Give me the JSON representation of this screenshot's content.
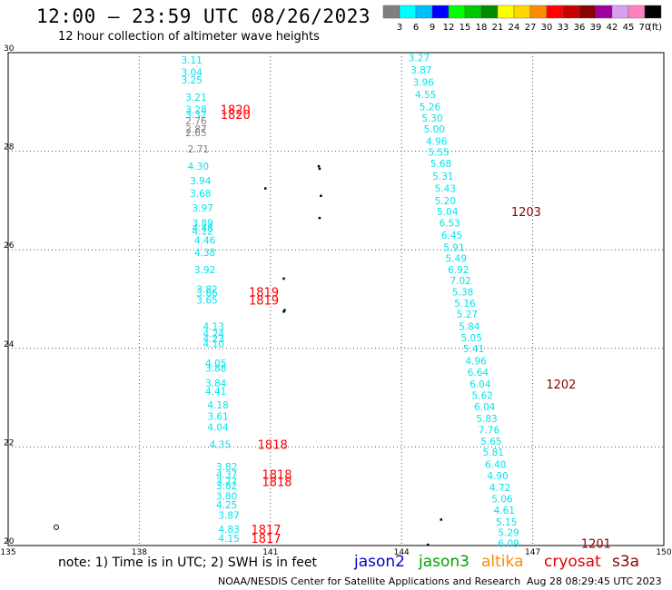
{
  "title": "12:00 – 23:59 UTC 08/26/2023",
  "subtitle": "12 hour collection of altimeter wave heights",
  "colorbar": {
    "unit": "(ft)",
    "bins": [
      {
        "label": "3",
        "color": "#7f7f7f"
      },
      {
        "label": "6",
        "color": "#00ffff"
      },
      {
        "label": "9",
        "color": "#00bfff"
      },
      {
        "label": "12",
        "color": "#0000ff"
      },
      {
        "label": "15",
        "color": "#00ff00"
      },
      {
        "label": "18",
        "color": "#00c800"
      },
      {
        "label": "21",
        "color": "#008c00"
      },
      {
        "label": "24",
        "color": "#ffff00"
      },
      {
        "label": "27",
        "color": "#ffd700"
      },
      {
        "label": "30",
        "color": "#ff8c00"
      },
      {
        "label": "33",
        "color": "#ff0000"
      },
      {
        "label": "36",
        "color": "#c80000"
      },
      {
        "label": "39",
        "color": "#8b0000"
      },
      {
        "label": "42",
        "color": "#a000a0"
      },
      {
        "label": "45",
        "color": "#d8a0f0"
      },
      {
        "label": "70",
        "color": "#ff80c0"
      },
      {
        "label": "",
        "color": "#000000"
      }
    ]
  },
  "map": {
    "lon_min": 135,
    "lon_max": 150,
    "lat_min": 20,
    "lat_max": 30,
    "lon_ticks": [
      "135",
      "138",
      "141",
      "144",
      "147",
      "150"
    ],
    "lat_ticks": [
      "30",
      "28",
      "26",
      "24",
      "22",
      "20"
    ]
  },
  "chart_data": {
    "type": "scatter",
    "tracks": [
      {
        "name": "track-west",
        "points": [
          {
            "lon": 139.2,
            "lat": 29.85,
            "v": "3.11",
            "c": "#00e5ee"
          },
          {
            "lon": 139.2,
            "lat": 29.6,
            "v": "3.04",
            "c": "#00e5ee"
          },
          {
            "lon": 139.2,
            "lat": 29.45,
            "v": "3.25",
            "c": "#00e5ee"
          },
          {
            "lon": 139.3,
            "lat": 29.1,
            "v": "3.21",
            "c": "#00e5ee"
          },
          {
            "lon": 139.3,
            "lat": 28.85,
            "v": "3.28",
            "c": "#00e5ee"
          },
          {
            "lon": 139.3,
            "lat": 28.75,
            "v": "3.32",
            "c": "#00e5ee"
          },
          {
            "lon": 139.3,
            "lat": 28.62,
            "v": "2.76",
            "c": "#7f7f7f"
          },
          {
            "lon": 139.3,
            "lat": 28.45,
            "v": "2.87",
            "c": "#7f7f7f"
          },
          {
            "lon": 139.3,
            "lat": 28.38,
            "v": "2.65",
            "c": "#7f7f7f"
          },
          {
            "lon": 139.35,
            "lat": 28.05,
            "v": "2.71",
            "c": "#7f7f7f"
          },
          {
            "lon": 139.35,
            "lat": 27.7,
            "v": "4.30",
            "c": "#00e5ee"
          },
          {
            "lon": 139.4,
            "lat": 27.4,
            "v": "3.94",
            "c": "#00e5ee"
          },
          {
            "lon": 139.4,
            "lat": 27.15,
            "v": "3.68",
            "c": "#00e5ee"
          },
          {
            "lon": 139.45,
            "lat": 26.85,
            "v": "3.97",
            "c": "#00e5ee"
          },
          {
            "lon": 139.45,
            "lat": 26.55,
            "v": "3.89",
            "c": "#00e5ee"
          },
          {
            "lon": 139.45,
            "lat": 26.45,
            "v": "4.48",
            "c": "#00e5ee"
          },
          {
            "lon": 139.45,
            "lat": 26.38,
            "v": "4.12",
            "c": "#00e5ee"
          },
          {
            "lon": 139.5,
            "lat": 26.2,
            "v": "4.46",
            "c": "#00e5ee"
          },
          {
            "lon": 139.5,
            "lat": 25.95,
            "v": "4.38",
            "c": "#00e5ee"
          },
          {
            "lon": 139.5,
            "lat": 25.6,
            "v": "3.92",
            "c": "#00e5ee"
          },
          {
            "lon": 139.55,
            "lat": 25.2,
            "v": "3.82",
            "c": "#00e5ee"
          },
          {
            "lon": 139.55,
            "lat": 25.13,
            "v": "3.66",
            "c": "#00e5ee"
          },
          {
            "lon": 139.55,
            "lat": 24.98,
            "v": "3.65",
            "c": "#00e5ee"
          },
          {
            "lon": 139.7,
            "lat": 24.45,
            "v": "4.13",
            "c": "#00e5ee"
          },
          {
            "lon": 139.7,
            "lat": 24.3,
            "v": "4.24",
            "c": "#00e5ee"
          },
          {
            "lon": 139.7,
            "lat": 24.2,
            "v": "4.23",
            "c": "#00e5ee"
          },
          {
            "lon": 139.7,
            "lat": 24.1,
            "v": "4.10",
            "c": "#00e5ee"
          },
          {
            "lon": 139.75,
            "lat": 23.7,
            "v": "4.05",
            "c": "#00e5ee"
          },
          {
            "lon": 139.75,
            "lat": 23.6,
            "v": "3.88",
            "c": "#00e5ee"
          },
          {
            "lon": 139.75,
            "lat": 23.3,
            "v": "3.84",
            "c": "#00e5ee"
          },
          {
            "lon": 139.75,
            "lat": 23.13,
            "v": "4.41",
            "c": "#00e5ee"
          },
          {
            "lon": 139.8,
            "lat": 22.85,
            "v": "4.18",
            "c": "#00e5ee"
          },
          {
            "lon": 139.8,
            "lat": 22.62,
            "v": "3.61",
            "c": "#00e5ee"
          },
          {
            "lon": 139.8,
            "lat": 22.4,
            "v": "4.04",
            "c": "#00e5ee"
          },
          {
            "lon": 139.85,
            "lat": 22.05,
            "v": "4.35",
            "c": "#00e5ee"
          },
          {
            "lon": 140.0,
            "lat": 21.6,
            "v": "3.82",
            "c": "#00e5ee"
          },
          {
            "lon": 140.0,
            "lat": 21.45,
            "v": "4.37",
            "c": "#00e5ee"
          },
          {
            "lon": 140.0,
            "lat": 21.3,
            "v": "3.77",
            "c": "#00e5ee"
          },
          {
            "lon": 140.0,
            "lat": 21.22,
            "v": "3.82",
            "c": "#00e5ee"
          },
          {
            "lon": 140.0,
            "lat": 21.0,
            "v": "3.80",
            "c": "#00e5ee"
          },
          {
            "lon": 140.0,
            "lat": 20.83,
            "v": "4.25",
            "c": "#00e5ee"
          },
          {
            "lon": 140.05,
            "lat": 20.62,
            "v": "3.87",
            "c": "#00e5ee"
          },
          {
            "lon": 140.05,
            "lat": 20.33,
            "v": "4.83",
            "c": "#00e5ee"
          },
          {
            "lon": 140.05,
            "lat": 20.15,
            "v": "4.15",
            "c": "#00e5ee"
          }
        ]
      },
      {
        "name": "track-east",
        "points": [
          {
            "lon": 144.4,
            "lat": 29.9,
            "v": "3.27",
            "c": "#00e5ee"
          },
          {
            "lon": 144.45,
            "lat": 29.65,
            "v": "3.87",
            "c": "#00e5ee"
          },
          {
            "lon": 144.5,
            "lat": 29.4,
            "v": "3.96",
            "c": "#00e5ee"
          },
          {
            "lon": 144.55,
            "lat": 29.15,
            "v": "4.55",
            "c": "#00e5ee"
          },
          {
            "lon": 144.65,
            "lat": 28.9,
            "v": "5.26",
            "c": "#00e5ee"
          },
          {
            "lon": 144.7,
            "lat": 28.67,
            "v": "5.30",
            "c": "#00e5ee"
          },
          {
            "lon": 144.75,
            "lat": 28.45,
            "v": "5.00",
            "c": "#00e5ee"
          },
          {
            "lon": 144.8,
            "lat": 28.2,
            "v": "4.96",
            "c": "#00e5ee"
          },
          {
            "lon": 144.85,
            "lat": 27.98,
            "v": "5.55",
            "c": "#00e5ee"
          },
          {
            "lon": 144.9,
            "lat": 27.75,
            "v": "5.68",
            "c": "#00e5ee"
          },
          {
            "lon": 144.95,
            "lat": 27.5,
            "v": "5.31",
            "c": "#00e5ee"
          },
          {
            "lon": 145.0,
            "lat": 27.25,
            "v": "5.43",
            "c": "#00e5ee"
          },
          {
            "lon": 145.0,
            "lat": 27.0,
            "v": "5.20",
            "c": "#00e5ee"
          },
          {
            "lon": 145.05,
            "lat": 26.78,
            "v": "5.04",
            "c": "#00e5ee"
          },
          {
            "lon": 145.1,
            "lat": 26.55,
            "v": "6.53",
            "c": "#00e5ee"
          },
          {
            "lon": 145.15,
            "lat": 26.3,
            "v": "6.45",
            "c": "#00e5ee"
          },
          {
            "lon": 145.2,
            "lat": 26.05,
            "v": "5.91",
            "c": "#00e5ee"
          },
          {
            "lon": 145.25,
            "lat": 25.83,
            "v": "5.49",
            "c": "#00e5ee"
          },
          {
            "lon": 145.3,
            "lat": 25.6,
            "v": "6.92",
            "c": "#00e5ee"
          },
          {
            "lon": 145.35,
            "lat": 25.38,
            "v": "7.02",
            "c": "#00e5ee"
          },
          {
            "lon": 145.4,
            "lat": 25.15,
            "v": "5.38",
            "c": "#00e5ee"
          },
          {
            "lon": 145.45,
            "lat": 24.92,
            "v": "5.16",
            "c": "#00e5ee"
          },
          {
            "lon": 145.5,
            "lat": 24.7,
            "v": "5.27",
            "c": "#00e5ee"
          },
          {
            "lon": 145.55,
            "lat": 24.45,
            "v": "5.84",
            "c": "#00e5ee"
          },
          {
            "lon": 145.6,
            "lat": 24.22,
            "v": "5.05",
            "c": "#00e5ee"
          },
          {
            "lon": 145.65,
            "lat": 24.0,
            "v": "5.41",
            "c": "#00e5ee"
          },
          {
            "lon": 145.7,
            "lat": 23.75,
            "v": "4.96",
            "c": "#00e5ee"
          },
          {
            "lon": 145.75,
            "lat": 23.52,
            "v": "6.64",
            "c": "#00e5ee"
          },
          {
            "lon": 145.8,
            "lat": 23.28,
            "v": "6.04",
            "c": "#00e5ee"
          },
          {
            "lon": 145.85,
            "lat": 23.05,
            "v": "5.62",
            "c": "#00e5ee"
          },
          {
            "lon": 145.9,
            "lat": 22.82,
            "v": "6.04",
            "c": "#00e5ee"
          },
          {
            "lon": 145.95,
            "lat": 22.58,
            "v": "5.83",
            "c": "#00e5ee"
          },
          {
            "lon": 146.0,
            "lat": 22.35,
            "v": "7.76",
            "c": "#00e5ee"
          },
          {
            "lon": 146.05,
            "lat": 22.12,
            "v": "5.65",
            "c": "#00e5ee"
          },
          {
            "lon": 146.1,
            "lat": 21.9,
            "v": "5.81",
            "c": "#00e5ee"
          },
          {
            "lon": 146.15,
            "lat": 21.65,
            "v": "6.40",
            "c": "#00e5ee"
          },
          {
            "lon": 146.2,
            "lat": 21.42,
            "v": "4.90",
            "c": "#00e5ee"
          },
          {
            "lon": 146.25,
            "lat": 21.18,
            "v": "4.72",
            "c": "#00e5ee"
          },
          {
            "lon": 146.3,
            "lat": 20.95,
            "v": "5.06",
            "c": "#00e5ee"
          },
          {
            "lon": 146.35,
            "lat": 20.72,
            "v": "4.61",
            "c": "#00e5ee"
          },
          {
            "lon": 146.4,
            "lat": 20.48,
            "v": "5.15",
            "c": "#00e5ee"
          },
          {
            "lon": 146.45,
            "lat": 20.27,
            "v": "5.29",
            "c": "#00e5ee"
          },
          {
            "lon": 146.45,
            "lat": 20.05,
            "v": "6.09",
            "c": "#00e5ee"
          }
        ]
      }
    ],
    "time_labels": [
      {
        "lon": 140.2,
        "lat": 28.85,
        "v": "1820",
        "c": "#ff0000"
      },
      {
        "lon": 140.2,
        "lat": 28.75,
        "v": "1820",
        "c": "#ff0000"
      },
      {
        "lon": 140.85,
        "lat": 25.15,
        "v": "1819",
        "c": "#ff0000"
      },
      {
        "lon": 140.85,
        "lat": 24.98,
        "v": "1819",
        "c": "#ff0000"
      },
      {
        "lon": 141.05,
        "lat": 22.05,
        "v": "1818",
        "c": "#ff0000"
      },
      {
        "lon": 141.15,
        "lat": 21.45,
        "v": "1818",
        "c": "#ff0000"
      },
      {
        "lon": 141.15,
        "lat": 21.3,
        "v": "1818",
        "c": "#ff0000"
      },
      {
        "lon": 140.9,
        "lat": 20.33,
        "v": "1817",
        "c": "#ff0000"
      },
      {
        "lon": 140.9,
        "lat": 20.15,
        "v": "1817",
        "c": "#ff0000"
      },
      {
        "lon": 146.85,
        "lat": 26.78,
        "v": "1203",
        "c": "#8b0000"
      },
      {
        "lon": 147.65,
        "lat": 23.28,
        "v": "1202",
        "c": "#8b0000"
      },
      {
        "lon": 148.45,
        "lat": 20.05,
        "v": "1201",
        "c": "#8b0000"
      }
    ],
    "islands": [
      {
        "lon": 142.1,
        "lat": 27.7
      },
      {
        "lon": 142.12,
        "lat": 27.65
      },
      {
        "lon": 142.15,
        "lat": 27.1
      },
      {
        "lon": 142.12,
        "lat": 26.65
      },
      {
        "lon": 140.88,
        "lat": 27.25
      },
      {
        "lon": 141.3,
        "lat": 25.42
      },
      {
        "lon": 141.32,
        "lat": 24.78
      },
      {
        "lon": 141.3,
        "lat": 24.75
      },
      {
        "lon": 144.9,
        "lat": 20.53
      },
      {
        "lon": 144.6,
        "lat": 20.02
      }
    ],
    "markers": [
      {
        "lon": 136.1,
        "lat": 20.37,
        "shape": "circle"
      }
    ]
  },
  "footer": {
    "note": "note: 1) Time is in UTC; 2) SWH is in feet",
    "missions": [
      {
        "label": "jason2",
        "color": "#0000cc"
      },
      {
        "label": "jason3",
        "color": "#00a000"
      },
      {
        "label": "altika",
        "color": "#ff8c00"
      },
      {
        "label": "cryosat",
        "color": "#e00000"
      },
      {
        "label": "s3a",
        "color": "#8b0000"
      }
    ],
    "credit": "NOAA/NESDIS Center for Satellite Applications and Research",
    "timestamp": "Aug 28 08:29:45 UTC 2023"
  }
}
